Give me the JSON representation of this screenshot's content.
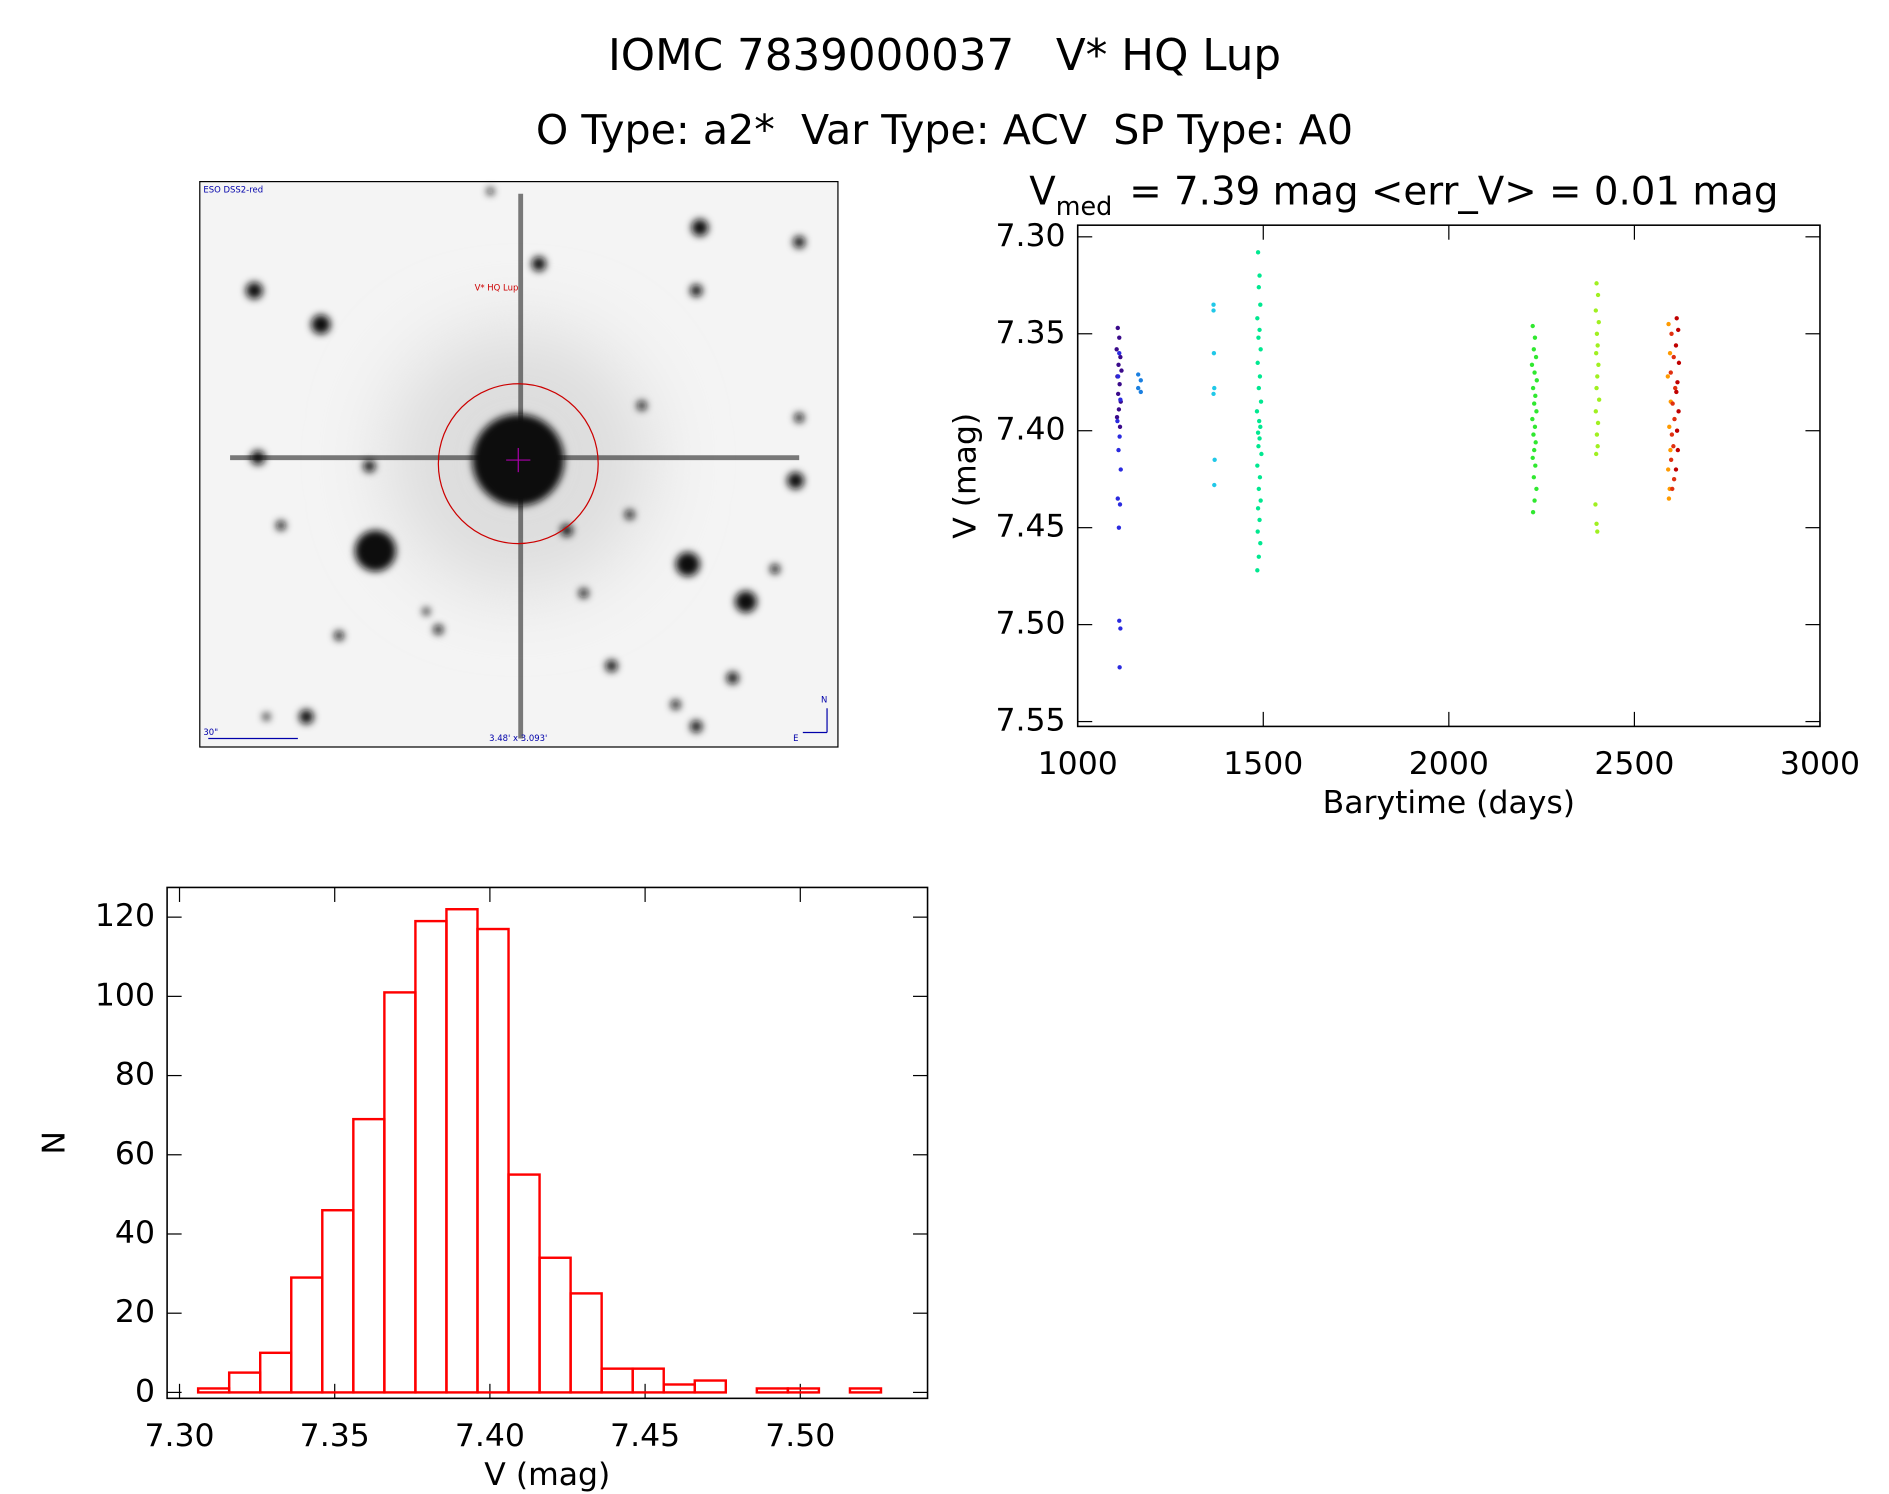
{
  "header": {
    "title": "IOMC 7839000037   V* HQ Lup",
    "subtitle": "O Type: a2*  Var Type: ACV  SP Type: A0"
  },
  "image": {
    "survey": "ESO DSS2-red",
    "target": "V* HQ Lup",
    "scale": "30\"",
    "size": "3.48' x 3.093'",
    "north": "N",
    "east": "E"
  },
  "chart_data": [
    {
      "type": "scatter",
      "title": {
        "symbol": "V",
        "subscript": "med",
        "text": "= 7.39 mag <err_V> = 0.01 mag"
      },
      "x_label": "Barytime (days)",
      "y_label": "V (mag)",
      "xlim": [
        1000,
        3000
      ],
      "xticks": [
        1000,
        1500,
        2000,
        2500,
        3000
      ],
      "ylim": [
        7.294,
        7.5525
      ],
      "y_inverted": true,
      "yticks": [
        {
          "value": 7.3,
          "label": "7.30"
        },
        7.35,
        {
          "value": 7.4,
          "label": "7.40"
        },
        7.45,
        {
          "value": 7.5,
          "label": "7.50"
        },
        7.55
      ],
      "series": [
        {
          "color": "#3a0a8a",
          "x": [
            1108,
            1112,
            1105,
            1115,
            1110,
            1118,
            1107,
            1113,
            1109,
            1116,
            1111,
            1106,
            1114
          ],
          "values": [
            7.347,
            7.352,
            7.358,
            7.362,
            7.366,
            7.369,
            7.372,
            7.376,
            7.381,
            7.385,
            7.389,
            7.393,
            7.398
          ]
        },
        {
          "color": "#2a2adf",
          "x": [
            1112,
            1109,
            1115,
            1107,
            1113,
            1110,
            1116,
            1108,
            1114,
            1111,
            1112,
            1115,
            1113
          ],
          "values": [
            7.36,
            7.372,
            7.384,
            7.395,
            7.403,
            7.41,
            7.42,
            7.435,
            7.438,
            7.45,
            7.498,
            7.502,
            7.522
          ]
        },
        {
          "color": "#1a7fe0",
          "x": [
            1163,
            1170,
            1163,
            1170
          ],
          "values": [
            7.371,
            7.374,
            7.378,
            7.38
          ]
        },
        {
          "color": "#20c8e8",
          "x": [
            1366,
            1366,
            1367,
            1368,
            1366,
            1369,
            1368
          ],
          "values": [
            7.335,
            7.338,
            7.36,
            7.378,
            7.381,
            7.415,
            7.428
          ]
        },
        {
          "color": "#00e890",
          "x": [
            1486,
            1490,
            1488,
            1492,
            1484,
            1490,
            1487,
            1493,
            1485,
            1491,
            1488,
            1494,
            1483,
            1489,
            1492,
            1486,
            1490,
            1487,
            1495,
            1484,
            1491,
            1488,
            1493,
            1486,
            1490,
            1485,
            1492,
            1488,
            1484
          ],
          "values": [
            7.308,
            7.32,
            7.326,
            7.335,
            7.342,
            7.348,
            7.352,
            7.358,
            7.365,
            7.372,
            7.378,
            7.385,
            7.39,
            7.395,
            7.398,
            7.401,
            7.404,
            7.408,
            7.412,
            7.418,
            7.424,
            7.43,
            7.436,
            7.44,
            7.446,
            7.452,
            7.458,
            7.465,
            7.472
          ]
        },
        {
          "color": "#30e830",
          "x": [
            2226,
            2232,
            2229,
            2235,
            2224,
            2231,
            2237,
            2227,
            2233,
            2230,
            2236,
            2225,
            2232,
            2228,
            2234,
            2230,
            2226,
            2233,
            2229,
            2236,
            2231,
            2227
          ],
          "values": [
            7.346,
            7.352,
            7.358,
            7.362,
            7.366,
            7.37,
            7.374,
            7.378,
            7.382,
            7.386,
            7.39,
            7.394,
            7.398,
            7.402,
            7.406,
            7.41,
            7.414,
            7.418,
            7.424,
            7.43,
            7.436,
            7.442
          ]
        },
        {
          "color": "#a0f020",
          "x": [
            2398,
            2402,
            2396,
            2404,
            2399,
            2401,
            2397,
            2403,
            2400,
            2398,
            2405,
            2396,
            2402,
            2399,
            2401,
            2397,
            2395,
            2398,
            2400
          ],
          "values": [
            7.324,
            7.33,
            7.338,
            7.344,
            7.35,
            7.356,
            7.36,
            7.366,
            7.372,
            7.378,
            7.384,
            7.39,
            7.396,
            7.402,
            7.408,
            7.412,
            7.438,
            7.448,
            7.452
          ]
        },
        {
          "color": "#ff9a00",
          "x": [
            2592,
            2596,
            2590,
            2598,
            2594,
            2597,
            2591,
            2595,
            2593
          ],
          "values": [
            7.345,
            7.36,
            7.372,
            7.385,
            7.398,
            7.41,
            7.42,
            7.43,
            7.435
          ]
        },
        {
          "color": "#e03010",
          "x": [
            2600,
            2606,
            2598,
            2610,
            2603,
            2608,
            2601,
            2605,
            2599,
            2607,
            2602
          ],
          "values": [
            7.35,
            7.362,
            7.37,
            7.378,
            7.386,
            7.394,
            7.402,
            7.408,
            7.415,
            7.425,
            7.43
          ]
        },
        {
          "color": "#c00000",
          "x": [
            2614,
            2618,
            2612,
            2620,
            2616,
            2613,
            2619,
            2615,
            2617,
            2612
          ],
          "values": [
            7.342,
            7.348,
            7.356,
            7.365,
            7.375,
            7.38,
            7.39,
            7.4,
            7.41,
            7.42
          ]
        }
      ]
    },
    {
      "type": "histogram",
      "x_label": "V (mag)",
      "y_label": "N",
      "color": "#ff0000",
      "bins": [
        7.306,
        7.316,
        7.326,
        7.336,
        7.346,
        7.356,
        7.366,
        7.376,
        7.386,
        7.396,
        7.406,
        7.416,
        7.426,
        7.436,
        7.446,
        7.456,
        7.466,
        7.476,
        7.486,
        7.496,
        7.506,
        7.516,
        7.526
      ],
      "values": [
        1,
        5,
        10,
        29,
        46,
        69,
        101,
        119,
        122,
        117,
        55,
        34,
        25,
        6,
        6,
        2,
        3,
        0,
        1,
        1,
        0,
        1
      ],
      "xlim": [
        7.296,
        7.541
      ],
      "xticks": [
        {
          "value": 7.3,
          "label": "7.30"
        },
        7.35,
        {
          "value": 7.4,
          "label": "7.40"
        },
        7.45,
        {
          "value": 7.5,
          "label": "7.50"
        }
      ],
      "ylim": [
        -1.5,
        127.5
      ],
      "yticks": [
        0,
        20,
        40,
        60,
        80,
        100,
        120
      ]
    }
  ]
}
